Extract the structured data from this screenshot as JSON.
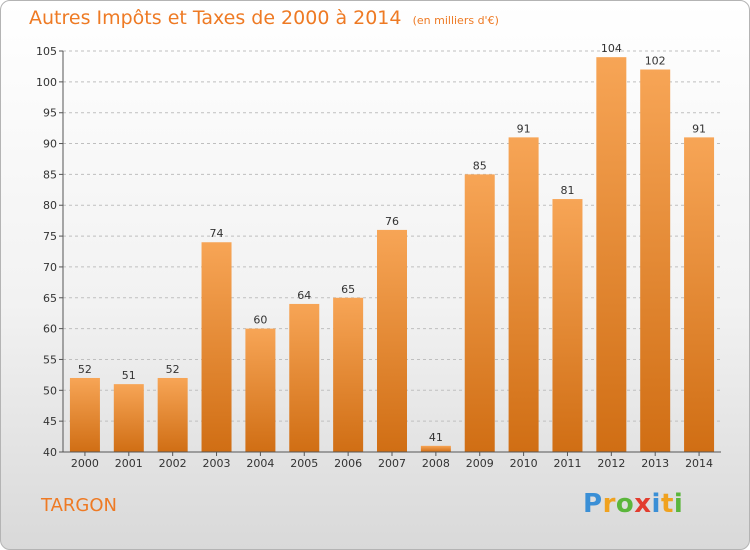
{
  "title": "Autres Impôts et Taxes de 2000 à 2014",
  "subtitle": "(en milliers d'€)",
  "commune": "TARGON",
  "logo": {
    "text": "Proxiti",
    "letters": [
      {
        "ch": "P",
        "color": "#3a8fd6"
      },
      {
        "ch": "r",
        "color": "#f0a21f"
      },
      {
        "ch": "o",
        "color": "#5bb63b"
      },
      {
        "ch": "x",
        "color": "#e23c2e"
      },
      {
        "ch": "i",
        "color": "#3a8fd6"
      },
      {
        "ch": "t",
        "color": "#f0a21f"
      },
      {
        "ch": "i",
        "color": "#5bb63b"
      }
    ]
  },
  "colors": {
    "accent": "#ee7a24",
    "bar_top": "#f7a556",
    "bar_bottom": "#d06e14",
    "grid": "#bfbfbf"
  },
  "chart_data": {
    "type": "bar",
    "title": "Autres Impôts et Taxes de 2000 à 2014",
    "subtitle": "(en milliers d'€)",
    "xlabel": "",
    "ylabel": "",
    "categories": [
      "2000",
      "2001",
      "2002",
      "2003",
      "2004",
      "2005",
      "2006",
      "2007",
      "2008",
      "2009",
      "2010",
      "2011",
      "2012",
      "2013",
      "2014"
    ],
    "values": [
      52,
      51,
      52,
      74,
      60,
      64,
      65,
      76,
      41,
      85,
      91,
      81,
      104,
      102,
      91
    ],
    "ylim": [
      40,
      105
    ],
    "yticks": [
      40,
      45,
      50,
      55,
      60,
      65,
      70,
      75,
      80,
      85,
      90,
      95,
      100,
      105
    ],
    "grid": "dashed horizontal",
    "legend": "none"
  }
}
